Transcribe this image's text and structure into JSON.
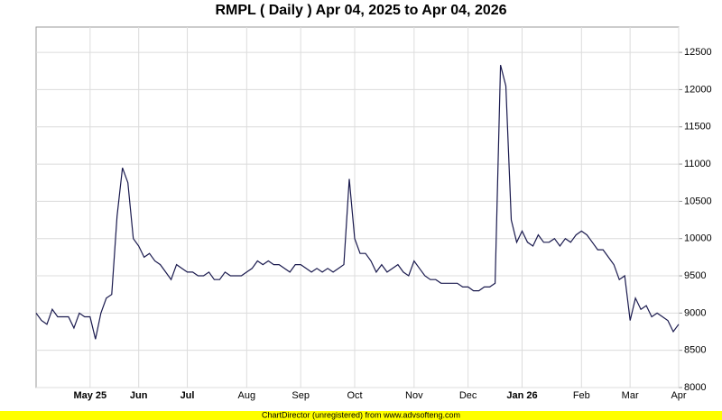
{
  "chart_data": {
    "type": "line",
    "title": "RMPL ( Daily ) Apr 04, 2025 to Apr 04, 2026",
    "footer": "ChartDirector (unregistered) from www.advsofteng.com",
    "categories": [
      null,
      null,
      null,
      null,
      null,
      null,
      null,
      null,
      null,
      null,
      "May 25",
      null,
      null,
      null,
      null,
      null,
      null,
      null,
      null,
      "Jun",
      null,
      null,
      null,
      null,
      null,
      null,
      null,
      null,
      "Jul",
      null,
      null,
      null,
      null,
      null,
      null,
      null,
      null,
      null,
      null,
      "Aug",
      null,
      null,
      null,
      null,
      null,
      null,
      null,
      null,
      null,
      "Sep",
      null,
      null,
      null,
      null,
      null,
      null,
      null,
      null,
      null,
      "Oct",
      null,
      null,
      null,
      null,
      null,
      null,
      null,
      null,
      null,
      null,
      "Nov",
      null,
      null,
      null,
      null,
      null,
      null,
      null,
      null,
      null,
      "Dec",
      null,
      null,
      null,
      null,
      null,
      null,
      null,
      null,
      null,
      "Jan 26",
      null,
      null,
      null,
      null,
      null,
      null,
      null,
      null,
      null,
      null,
      "Feb",
      null,
      null,
      null,
      null,
      null,
      null,
      null,
      null,
      "Mar",
      null,
      null,
      null,
      null,
      null,
      null,
      null,
      null,
      "Apr"
    ],
    "values": [
      9000,
      8900,
      8850,
      9050,
      8950,
      8950,
      8950,
      8800,
      9000,
      8950,
      8950,
      8650,
      9000,
      9200,
      9250,
      10300,
      10950,
      10750,
      10000,
      9900,
      9750,
      9800,
      9700,
      9650,
      9550,
      9450,
      9650,
      9600,
      9550,
      9550,
      9500,
      9500,
      9550,
      9450,
      9450,
      9550,
      9500,
      9500,
      9500,
      9550,
      9600,
      9700,
      9650,
      9700,
      9650,
      9650,
      9600,
      9550,
      9650,
      9650,
      9600,
      9550,
      9600,
      9550,
      9600,
      9550,
      9600,
      9650,
      10800,
      10000,
      9800,
      9800,
      9700,
      9550,
      9650,
      9550,
      9600,
      9650,
      9550,
      9500,
      9700,
      9600,
      9500,
      9450,
      9450,
      9400,
      9400,
      9400,
      9400,
      9350,
      9350,
      9300,
      9300,
      9350,
      9350,
      9400,
      12330,
      12050,
      10250,
      9950,
      10100,
      9950,
      9900,
      10050,
      9950,
      9950,
      10000,
      9900,
      10000,
      9950,
      10050,
      10100,
      10050,
      9950,
      9850,
      9850,
      9750,
      9650,
      9450,
      9500,
      8900,
      9200,
      9050,
      9100,
      8950,
      9000,
      8950,
      8900,
      8750,
      8850
    ],
    "color": "#1a1a4e",
    "ylim": [
      8000,
      12840
    ],
    "yticks": [
      8000,
      8500,
      9000,
      9500,
      10000,
      10500,
      11000,
      11500,
      12000,
      12500
    ],
    "grid": true
  }
}
